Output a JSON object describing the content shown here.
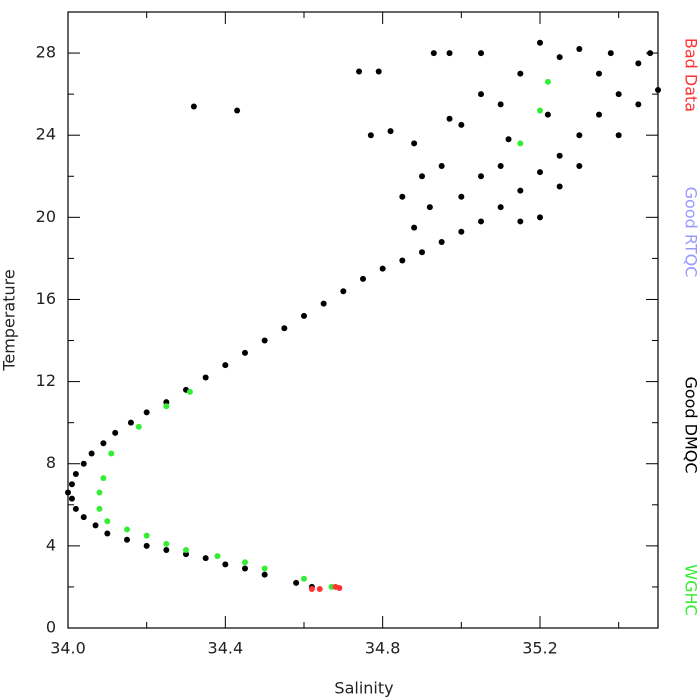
{
  "chart_data": {
    "type": "scatter",
    "x_label": "Salinity",
    "y_label": "Temperature",
    "xlim": [
      34.0,
      35.5
    ],
    "ylim": [
      0,
      30
    ],
    "xticks": [
      {
        "value": 34.0,
        "label": "34.0"
      },
      34.4,
      34.8,
      35.2
    ],
    "xminorticks": [
      34.2,
      34.6,
      35.0,
      35.4
    ],
    "yticks": [
      0,
      4,
      8,
      12,
      16,
      20,
      24,
      28
    ],
    "yminorticks": [
      2,
      6,
      10,
      14,
      18,
      22,
      26,
      30
    ],
    "series": [
      {
        "name": "Bad Data",
        "color": "#ff3333",
        "x": [
          34.62,
          34.64,
          34.68,
          34.69
        ],
        "y": [
          1.9,
          1.9,
          2.0,
          1.95
        ]
      },
      {
        "name": "Good RTQC",
        "color": "#9999ff",
        "x": [],
        "y": []
      },
      {
        "name": "Good DMQC",
        "color": "#000000",
        "x": [
          34.62,
          34.58,
          34.5,
          34.45,
          34.4,
          34.35,
          34.3,
          34.25,
          34.2,
          34.15,
          34.1,
          34.07,
          34.04,
          34.02,
          34.01,
          34.0,
          34.01,
          34.02,
          34.04,
          34.06,
          34.09,
          34.12,
          34.16,
          34.2,
          34.25,
          34.3,
          34.35,
          34.4,
          34.45,
          34.5,
          34.55,
          34.6,
          34.65,
          34.7,
          34.75,
          34.8,
          34.85,
          34.9,
          34.95,
          35.0,
          35.05,
          35.1,
          35.15,
          35.2,
          35.25,
          35.3,
          35.35,
          35.4,
          35.45,
          35.48,
          34.93,
          34.97,
          35.05,
          34.74,
          34.79,
          34.32,
          34.43,
          34.77,
          34.82,
          34.88,
          34.95,
          35.0,
          35.05,
          35.1,
          35.15,
          35.2,
          35.25,
          35.3,
          35.35,
          35.1,
          35.0,
          34.92,
          34.88,
          35.05,
          35.2,
          35.3,
          35.4,
          35.45,
          35.5,
          35.38,
          35.12,
          34.97,
          35.22,
          35.15,
          35.25,
          34.85,
          34.9
        ],
        "y": [
          2.0,
          2.2,
          2.6,
          2.9,
          3.1,
          3.4,
          3.6,
          3.8,
          4.0,
          4.3,
          4.6,
          5.0,
          5.4,
          5.8,
          6.3,
          6.6,
          7.0,
          7.5,
          8.0,
          8.5,
          9.0,
          9.5,
          10.0,
          10.5,
          11.0,
          11.6,
          12.2,
          12.8,
          13.4,
          14.0,
          14.6,
          15.2,
          15.8,
          16.4,
          17.0,
          17.5,
          17.9,
          18.3,
          18.8,
          19.3,
          19.8,
          20.5,
          21.3,
          22.2,
          23.0,
          24.0,
          25.0,
          26.0,
          27.5,
          28.0,
          28.0,
          28.0,
          28.0,
          27.1,
          27.1,
          25.4,
          25.2,
          24.0,
          24.2,
          23.6,
          22.5,
          24.5,
          26.0,
          25.5,
          27.0,
          28.5,
          27.8,
          28.2,
          27.0,
          22.5,
          21.0,
          20.5,
          19.5,
          22.0,
          20.0,
          22.5,
          24.0,
          25.5,
          26.2,
          28.0,
          23.8,
          24.8,
          25.0,
          19.8,
          21.5,
          21.0,
          22.0
        ]
      },
      {
        "name": "WGHC",
        "color": "#33ee33",
        "x": [
          34.67,
          34.6,
          34.5,
          34.45,
          34.38,
          34.3,
          34.25,
          34.2,
          34.15,
          34.1,
          34.08,
          34.08,
          34.09,
          34.11,
          34.18,
          34.25,
          34.31,
          35.15,
          35.2,
          35.22
        ],
        "y": [
          2.0,
          2.4,
          2.9,
          3.2,
          3.5,
          3.8,
          4.1,
          4.5,
          4.8,
          5.2,
          5.8,
          6.6,
          7.3,
          8.5,
          9.8,
          10.8,
          11.5,
          23.6,
          25.2,
          26.6
        ]
      }
    ]
  }
}
